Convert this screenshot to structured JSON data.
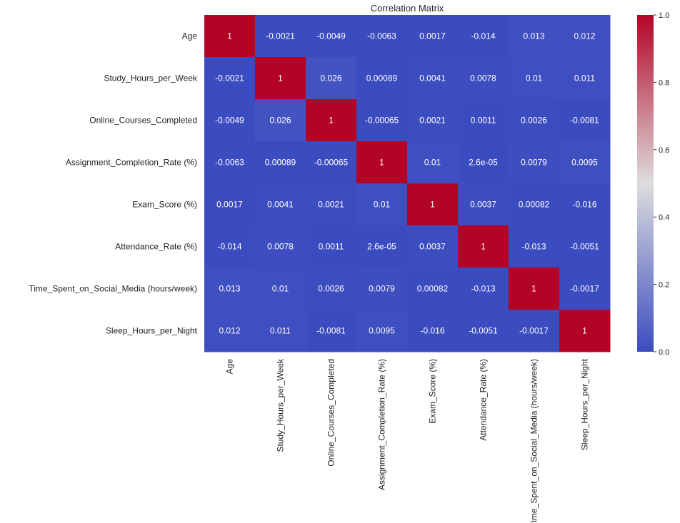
{
  "chart_data": {
    "type": "heatmap",
    "title": "Correlation Matrix",
    "xlabel": "",
    "ylabel": "",
    "colormap": "coolwarm",
    "colormap_stops": [
      "#3b4cc0",
      "#dddddd",
      "#b40426"
    ],
    "value_range": [
      0.0,
      1.0
    ],
    "colorbar_ticks": [
      "0.0",
      "0.2",
      "0.4",
      "0.6",
      "0.8",
      "1.0"
    ],
    "colorbar_tick_values": [
      0.0,
      0.2,
      0.4,
      0.6,
      0.8,
      1.0
    ],
    "colorbar_position": "right",
    "labels": [
      "Age",
      "Study_Hours_per_Week",
      "Online_Courses_Completed",
      "Assignment_Completion_Rate (%)",
      "Exam_Score (%)",
      "Attendance_Rate (%)",
      "Time_Spent_on_Social_Media (hours/week)",
      "Sleep_Hours_per_Night"
    ],
    "values": [
      [
        1,
        -0.0021,
        -0.0049,
        -0.0063,
        0.0017,
        -0.014,
        0.013,
        0.012
      ],
      [
        -0.0021,
        1,
        0.026,
        0.00089,
        0.0041,
        0.0078,
        0.01,
        0.011
      ],
      [
        -0.0049,
        0.026,
        1,
        -0.00065,
        0.0021,
        0.0011,
        0.0026,
        -0.0081
      ],
      [
        -0.0063,
        0.00089,
        -0.00065,
        1,
        0.01,
        2.6e-05,
        0.0079,
        0.0095
      ],
      [
        0.0017,
        0.0041,
        0.0021,
        0.01,
        1,
        0.0037,
        0.00082,
        -0.016
      ],
      [
        -0.014,
        0.0078,
        0.0011,
        2.6e-05,
        0.0037,
        1,
        -0.013,
        -0.0051
      ],
      [
        0.013,
        0.01,
        0.0026,
        0.0079,
        0.00082,
        -0.013,
        1,
        -0.0017
      ],
      [
        0.012,
        0.011,
        -0.0081,
        0.0095,
        -0.016,
        -0.0051,
        -0.0017,
        1
      ]
    ],
    "annotations": [
      [
        "1",
        "-0.0021",
        "-0.0049",
        "-0.0063",
        "0.0017",
        "-0.014",
        "0.013",
        "0.012"
      ],
      [
        "-0.0021",
        "1",
        "0.026",
        "0.00089",
        "0.0041",
        "0.0078",
        "0.01",
        "0.011"
      ],
      [
        "-0.0049",
        "0.026",
        "1",
        "-0.00065",
        "0.0021",
        "0.0011",
        "0.0026",
        "-0.0081"
      ],
      [
        "-0.0063",
        "0.00089",
        "-0.00065",
        "1",
        "0.01",
        "2.6e-05",
        "0.0079",
        "0.0095"
      ],
      [
        "0.0017",
        "0.0041",
        "0.0021",
        "0.01",
        "1",
        "0.0037",
        "0.00082",
        "-0.016"
      ],
      [
        "-0.014",
        "0.0078",
        "0.0011",
        "2.6e-05",
        "0.0037",
        "1",
        "-0.013",
        "-0.0051"
      ],
      [
        "0.013",
        "0.01",
        "0.0026",
        "0.0079",
        "0.00082",
        "-0.013",
        "1",
        "-0.0017"
      ],
      [
        "0.012",
        "0.011",
        "-0.0081",
        "0.0095",
        "-0.016",
        "-0.0051",
        "-0.0017",
        "1"
      ]
    ]
  }
}
